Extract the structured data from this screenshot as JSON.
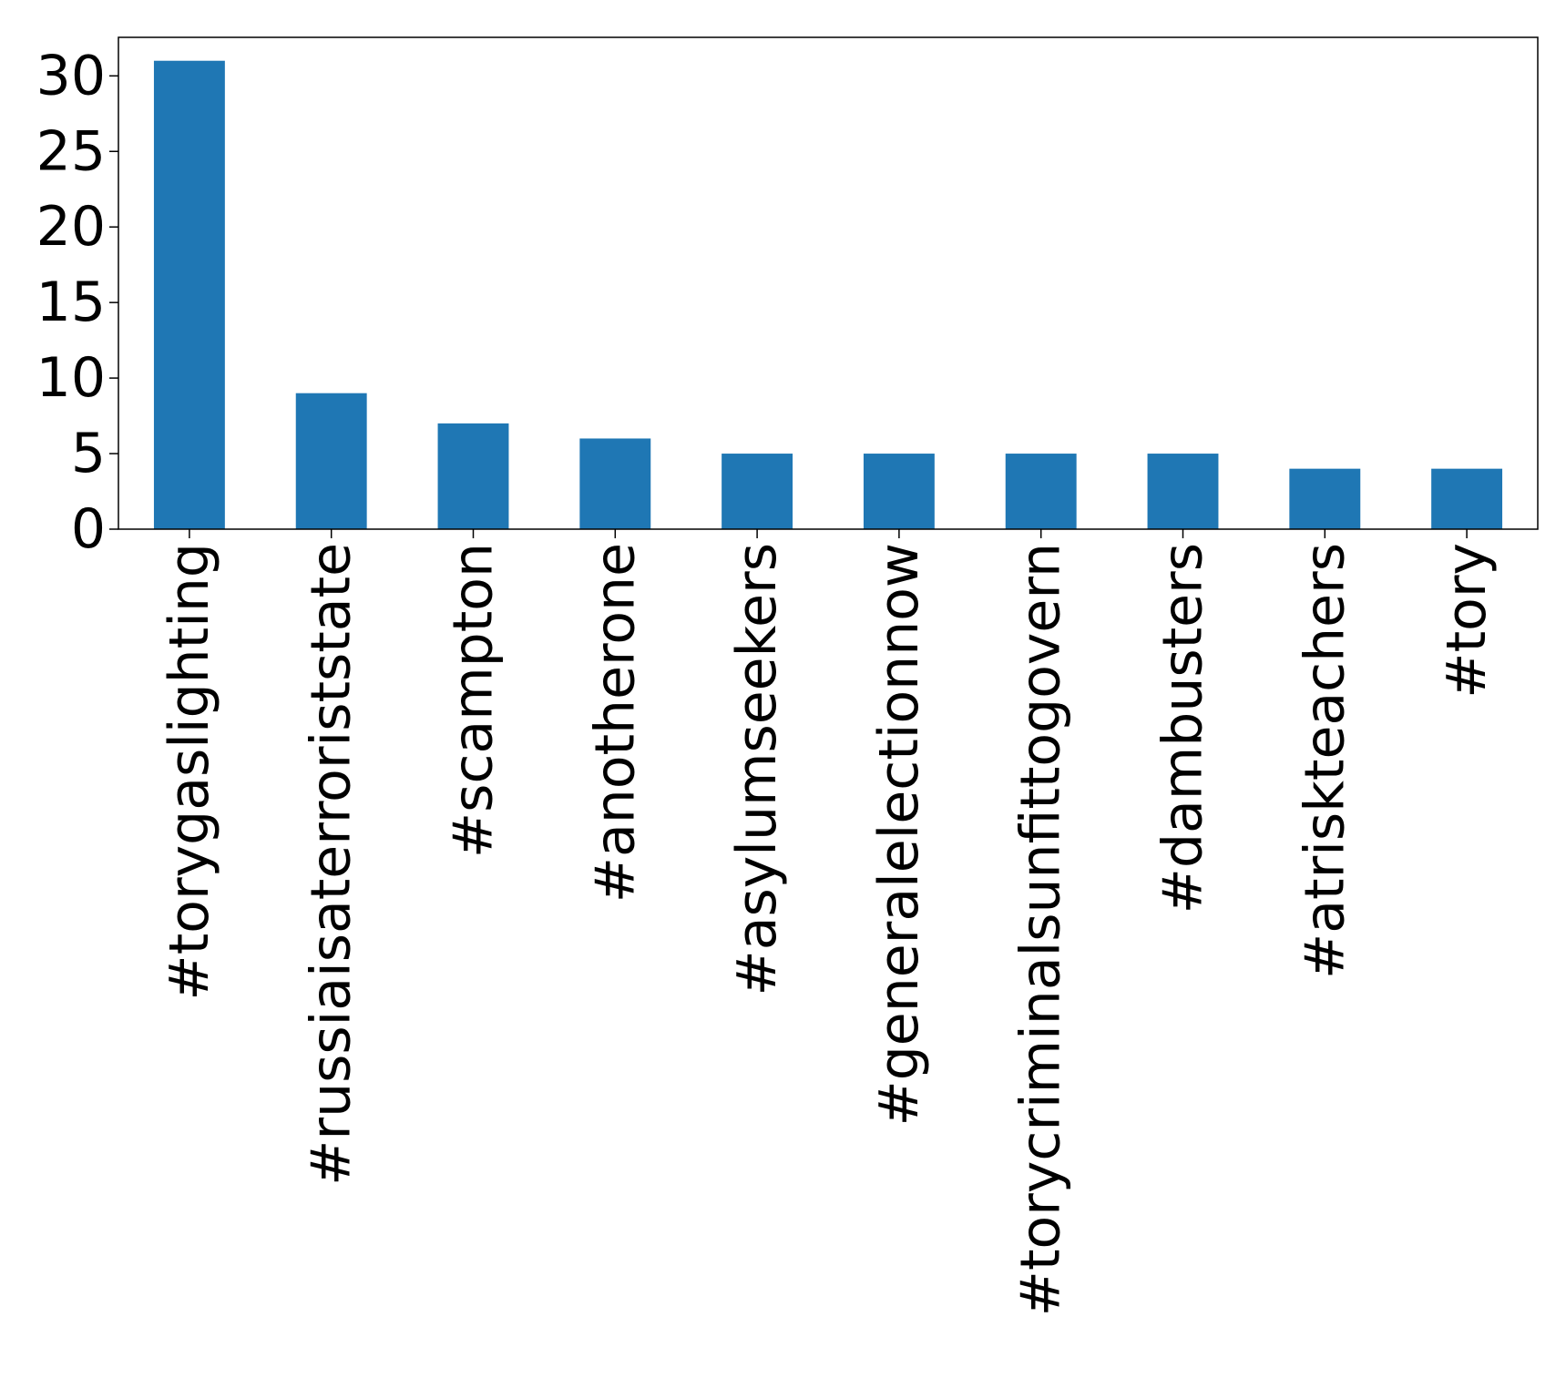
{
  "chart_data": {
    "type": "bar",
    "title": "",
    "xlabel": "",
    "ylabel": "",
    "categories": [
      "#torygaslighting",
      "#russiaisaterroriststate",
      "#scampton",
      "#anotherone",
      "#asylumseekers",
      "#generalelectionnow",
      "#torycriminalsunfittogovern",
      "#dambusters",
      "#atriskteachers",
      "#tory"
    ],
    "values": [
      31,
      9,
      7,
      6,
      5,
      5,
      5,
      5,
      4,
      4
    ],
    "ylim": [
      0,
      32.55
    ],
    "yticks": [
      0,
      5,
      10,
      15,
      20,
      25,
      30
    ],
    "grid": false,
    "legend": "none",
    "bar_color": "#1f77b4"
  }
}
